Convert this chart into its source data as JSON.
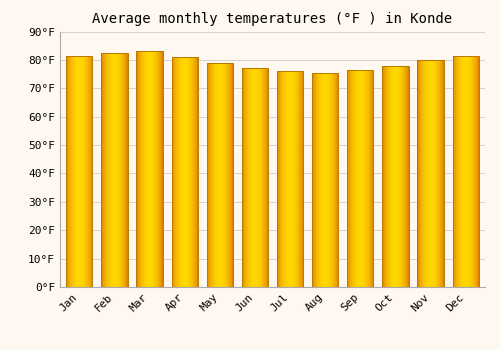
{
  "title": "Average monthly temperatures (°F ) in Konde",
  "months": [
    "Jan",
    "Feb",
    "Mar",
    "Apr",
    "May",
    "Jun",
    "Jul",
    "Aug",
    "Sep",
    "Oct",
    "Nov",
    "Dec"
  ],
  "values": [
    81.5,
    82.5,
    83.0,
    81.0,
    79.0,
    77.0,
    76.0,
    75.5,
    76.5,
    78.0,
    80.0,
    81.5
  ],
  "bar_color_center": "#FFD700",
  "bar_color_edge": "#E08000",
  "bar_edge_color": "#B87800",
  "ylim": [
    0,
    90
  ],
  "ytick_step": 10,
  "background_color": "#FFF8F0",
  "grid_color": "#CCCCCC",
  "title_fontsize": 10,
  "tick_fontsize": 8,
  "font_family": "monospace"
}
